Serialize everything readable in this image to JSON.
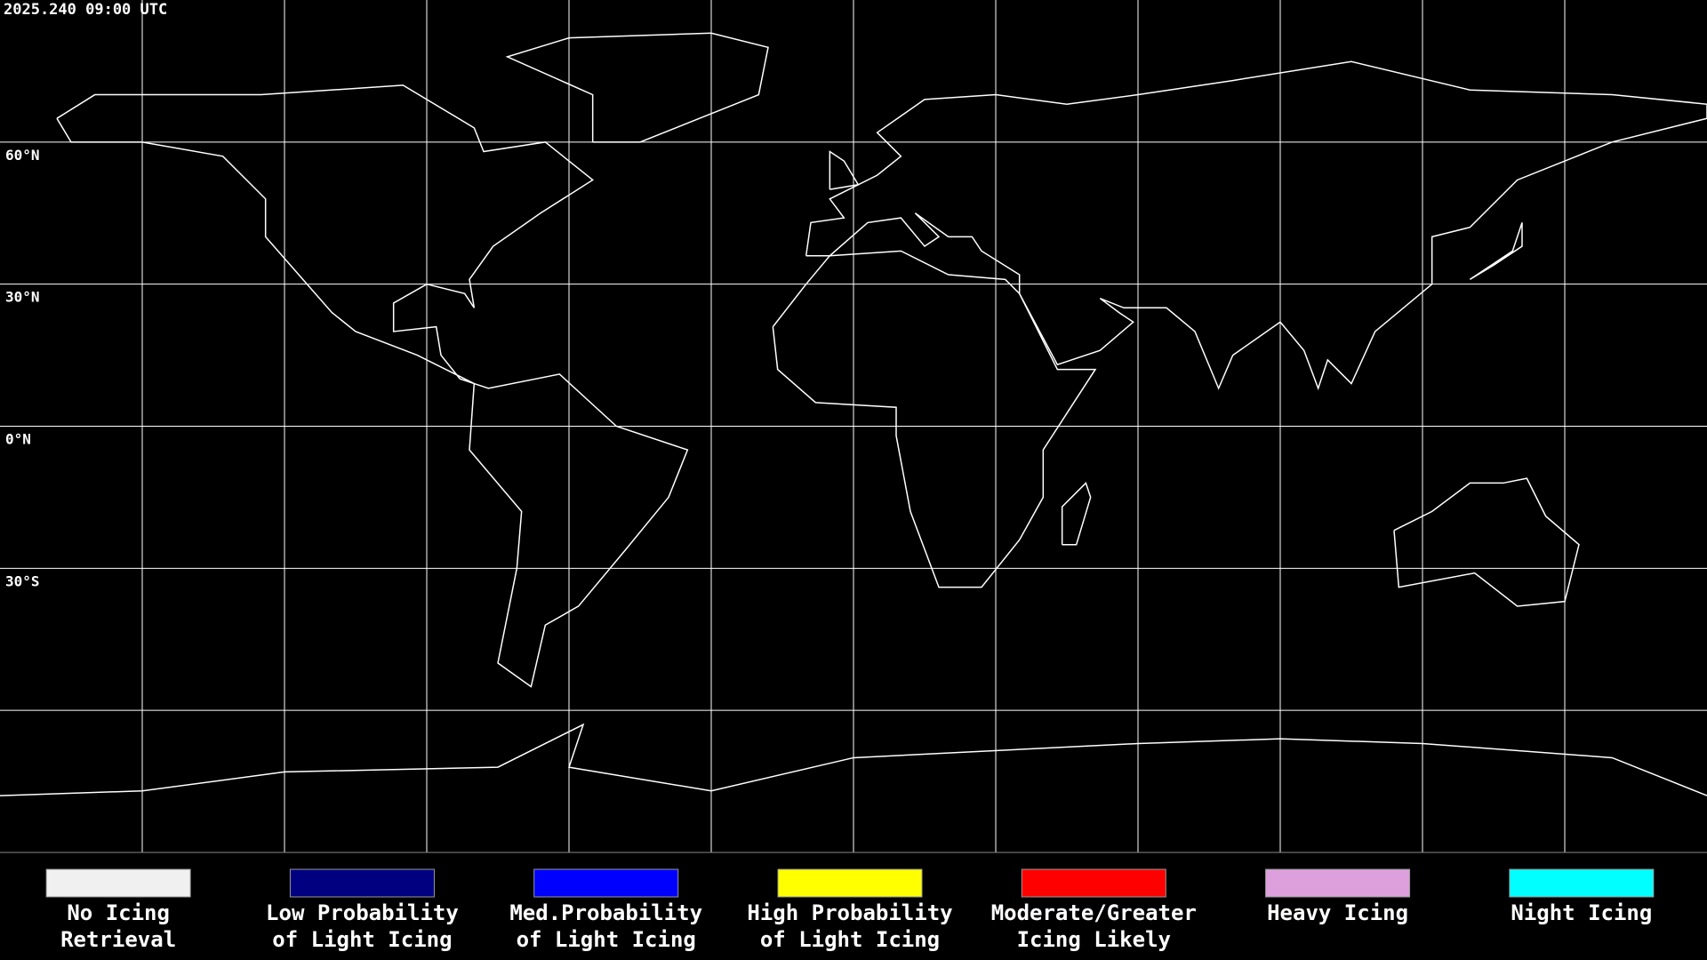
{
  "map": {
    "timestamp": "2025.240 09:00 UTC",
    "lat_labels": [
      "60°N",
      "30°N",
      "0°N",
      "30°S"
    ]
  },
  "legend": {
    "items": [
      {
        "lines": [
          "No Icing",
          "Retrieval"
        ],
        "color": "#f0f0f0"
      },
      {
        "lines": [
          "Low Probability",
          "of Light Icing"
        ],
        "color": "#000080"
      },
      {
        "lines": [
          "Med.Probability",
          "of Light Icing"
        ],
        "color": "#0000ff"
      },
      {
        "lines": [
          "High Probability",
          "of Light Icing"
        ],
        "color": "#ffff00"
      },
      {
        "lines": [
          "Moderate/Greater",
          "Icing Likely"
        ],
        "color": "#ff0000"
      },
      {
        "lines": [
          "Heavy Icing"
        ],
        "color": "#dda0dd"
      },
      {
        "lines": [
          "Night Icing"
        ],
        "color": "#00ffff"
      }
    ]
  }
}
